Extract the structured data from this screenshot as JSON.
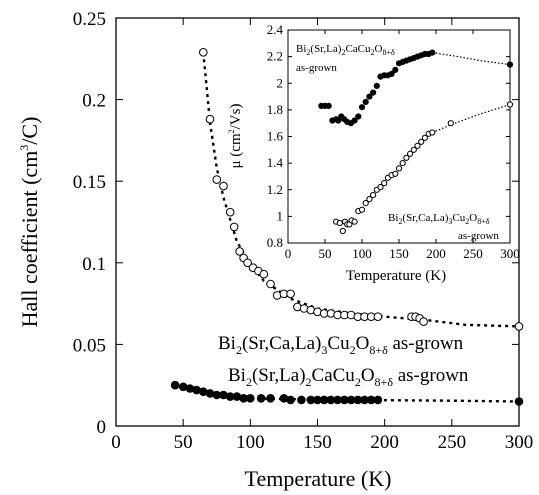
{
  "chart_data": [
    {
      "type": "scatter",
      "xlabel": "Temperature (K)",
      "ylabel": "Hall coefficient (cm",
      "ylabel_sup": "3",
      "ylabel_end": "/C)",
      "xlim": [
        0,
        300
      ],
      "ylim": [
        0,
        0.25
      ],
      "x_ticks": [
        0,
        50,
        100,
        150,
        200,
        250,
        300
      ],
      "y_ticks": [
        0,
        0.05,
        0.1,
        0.15,
        0.2,
        0.25
      ],
      "x_tick_labels": [
        "0",
        "50",
        "100",
        "150",
        "200",
        "250",
        "300"
      ],
      "y_tick_labels": [
        "0",
        "0.05",
        "0.1",
        "0.15",
        "0.2",
        "0.25"
      ],
      "grid": false,
      "series": [
        {
          "name": "Bi2(Sr,Ca,La)3Cu2O8+δ as-grown",
          "marker": "open-circle",
          "x": [
            65,
            70,
            75,
            80,
            85,
            88,
            92,
            95,
            98,
            102,
            106,
            110,
            115,
            120,
            125,
            130,
            135,
            140,
            145,
            150,
            155,
            160,
            165,
            170,
            175,
            180,
            185,
            190,
            195,
            220,
            223,
            226,
            229,
            300
          ],
          "y": [
            0.229,
            0.188,
            0.151,
            0.147,
            0.131,
            0.122,
            0.107,
            0.103,
            0.1,
            0.097,
            0.095,
            0.093,
            0.087,
            0.08,
            0.081,
            0.081,
            0.073,
            0.072,
            0.071,
            0.07,
            0.069,
            0.069,
            0.068,
            0.068,
            0.068,
            0.067,
            0.067,
            0.067,
            0.067,
            0.067,
            0.067,
            0.066,
            0.064,
            0.061
          ],
          "fit_x": [
            65,
            70,
            75,
            80,
            90,
            100,
            110,
            130,
            150,
            175,
            200,
            230,
            260,
            300
          ],
          "fit_y": [
            0.229,
            0.186,
            0.158,
            0.14,
            0.113,
            0.099,
            0.089,
            0.078,
            0.072,
            0.069,
            0.067,
            0.065,
            0.062,
            0.061
          ]
        },
        {
          "name": "Bi2(Sr,La)2CaCu2O8+δ as-grown",
          "marker": "filled-circle",
          "x": [
            44,
            50,
            55,
            60,
            65,
            70,
            75,
            80,
            85,
            90,
            95,
            100,
            108,
            115,
            125,
            130,
            138,
            145,
            150,
            155,
            160,
            165,
            170,
            175,
            180,
            185,
            190,
            195,
            300
          ],
          "y": [
            0.025,
            0.024,
            0.023,
            0.022,
            0.021,
            0.02,
            0.019,
            0.019,
            0.018,
            0.018,
            0.017,
            0.017,
            0.017,
            0.017,
            0.017,
            0.016,
            0.016,
            0.016,
            0.016,
            0.016,
            0.016,
            0.016,
            0.016,
            0.016,
            0.016,
            0.016,
            0.016,
            0.016,
            0.015
          ],
          "fit_x": [
            44,
            60,
            80,
            100,
            130,
            160,
            200,
            250,
            300
          ],
          "fit_y": [
            0.025,
            0.022,
            0.019,
            0.017,
            0.0165,
            0.016,
            0.0158,
            0.0155,
            0.015
          ]
        }
      ],
      "annotations": [
        {
          "main": "Bi",
          "sub1": "2",
          "mid": "(Sr,Ca,La)",
          "sub2": "3",
          "mid2": "Cu",
          "sub3": "2",
          "mid3": "O",
          "sub4": "8+δ",
          "tail": " as-grown"
        },
        {
          "main": "Bi",
          "sub1": "2",
          "mid": "(Sr,La)",
          "sub2": "2",
          "mid2": "CaCu",
          "sub3": "2",
          "mid3": "O",
          "sub4": "8+δ",
          "tail": " as-grown"
        }
      ]
    },
    {
      "type": "scatter",
      "xlabel": "Temperature (K)",
      "ylabel": "μ  (cm",
      "ylabel_sup": "2",
      "ylabel_end": "/Vs)",
      "xlim": [
        0,
        300
      ],
      "ylim": [
        0.8,
        2.4
      ],
      "x_ticks": [
        0,
        50,
        100,
        150,
        200,
        250,
        300
      ],
      "y_ticks": [
        0.8,
        1,
        1.2,
        1.4,
        1.6,
        1.8,
        2,
        2.2,
        2.4
      ],
      "x_tick_labels": [
        "0",
        "50",
        "100",
        "150",
        "200",
        "250",
        "300"
      ],
      "y_tick_labels": [
        "0.8",
        "1",
        "1.2",
        "1.4",
        "1.6",
        "1.8",
        "2",
        "2.2",
        "2.4"
      ],
      "grid": false,
      "series": [
        {
          "name": "Bi2(Sr,La)2CaCu2O8+δ as-grown",
          "marker": "filled-circle",
          "x": [
            45,
            50,
            55,
            60,
            65,
            68,
            72,
            76,
            80,
            85,
            90,
            95,
            100,
            105,
            110,
            115,
            120,
            125,
            130,
            135,
            140,
            145,
            150,
            155,
            160,
            165,
            170,
            175,
            180,
            185,
            190,
            195,
            300
          ],
          "y": [
            1.83,
            1.83,
            1.83,
            1.72,
            1.73,
            1.72,
            1.75,
            1.73,
            1.71,
            1.7,
            1.72,
            1.75,
            1.82,
            1.86,
            1.9,
            1.93,
            1.98,
            2.05,
            2.06,
            2.06,
            2.07,
            2.1,
            2.15,
            2.16,
            2.17,
            2.18,
            2.19,
            2.2,
            2.21,
            2.22,
            2.22,
            2.23,
            2.14
          ],
          "fit_x": [
            195,
            230,
            260,
            300
          ],
          "fit_y": [
            2.23,
            2.2,
            2.17,
            2.14
          ]
        },
        {
          "name": "Bi2(Sr,Ca,La)3Cu2O8+δ as-grown",
          "marker": "open-circle",
          "x": [
            65,
            70,
            74,
            77,
            80,
            83,
            86,
            90,
            95,
            100,
            105,
            110,
            115,
            120,
            125,
            130,
            135,
            140,
            145,
            150,
            155,
            160,
            165,
            170,
            175,
            180,
            185,
            190,
            195,
            220,
            300
          ],
          "y": [
            0.96,
            0.95,
            0.89,
            0.96,
            0.94,
            0.94,
            0.97,
            0.96,
            1.04,
            1.05,
            1.1,
            1.13,
            1.16,
            1.2,
            1.22,
            1.25,
            1.29,
            1.31,
            1.32,
            1.36,
            1.4,
            1.44,
            1.47,
            1.5,
            1.53,
            1.56,
            1.59,
            1.62,
            1.63,
            1.7,
            1.84
          ],
          "fit_x": [
            195,
            230,
            260,
            300
          ],
          "fit_y": [
            1.63,
            1.71,
            1.77,
            1.84
          ]
        }
      ],
      "annotations": [
        {
          "main": "Bi",
          "sub1": "2",
          "mid": "(Sr,La)",
          "sub2": "2",
          "mid2": "CaCu",
          "sub3": "2",
          "mid3": "O",
          "sub4": "8+δ",
          "tail": "as-grown"
        },
        {
          "main": "Bi",
          "sub1": "2",
          "mid": "(Sr,Ca,La)",
          "sub2": "3",
          "mid2": "Cu",
          "sub3": "2",
          "mid3": "O",
          "sub4": "8+δ",
          "tail": "as-grown"
        }
      ]
    }
  ]
}
